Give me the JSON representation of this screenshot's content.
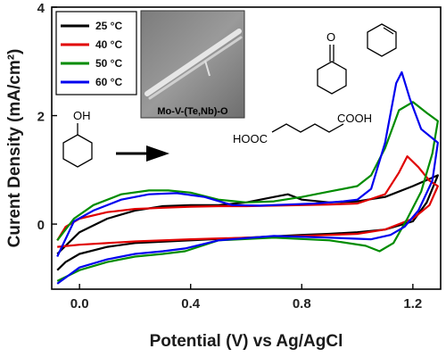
{
  "chart_data": {
    "type": "line",
    "xlabel": "Potential (V) vs Ag/AgCl",
    "ylabel": "Curent Density (mA/cm²)",
    "xlim": [
      -0.1,
      1.3
    ],
    "ylim": [
      -1.2,
      4.0
    ],
    "x_ticks": [
      0.0,
      0.4,
      0.8,
      1.2
    ],
    "x_tick_labels": [
      "0.0",
      "0.4",
      "0.8",
      "1.2"
    ],
    "y_ticks": [
      0,
      2,
      4
    ],
    "y_tick_labels": [
      "0",
      "2",
      "4"
    ],
    "grid": false,
    "legend_placement": "top-left",
    "series": [
      {
        "name": "25 °C",
        "color": "#000000",
        "anodic": [
          [
            -0.08,
            -0.55
          ],
          [
            0.0,
            -0.15
          ],
          [
            0.1,
            0.1
          ],
          [
            0.2,
            0.25
          ],
          [
            0.3,
            0.33
          ],
          [
            0.4,
            0.35
          ],
          [
            0.5,
            0.35
          ],
          [
            0.6,
            0.4
          ],
          [
            0.7,
            0.5
          ],
          [
            0.75,
            0.55
          ],
          [
            0.8,
            0.45
          ],
          [
            0.9,
            0.4
          ],
          [
            1.0,
            0.42
          ],
          [
            1.1,
            0.5
          ],
          [
            1.2,
            0.7
          ],
          [
            1.29,
            0.9
          ]
        ],
        "cathodic": [
          [
            1.29,
            0.9
          ],
          [
            1.25,
            0.4
          ],
          [
            1.2,
            0.05
          ],
          [
            1.1,
            -0.1
          ],
          [
            1.0,
            -0.15
          ],
          [
            0.9,
            -0.18
          ],
          [
            0.8,
            -0.2
          ],
          [
            0.6,
            -0.25
          ],
          [
            0.4,
            -0.3
          ],
          [
            0.2,
            -0.35
          ],
          [
            0.1,
            -0.42
          ],
          [
            0.0,
            -0.55
          ],
          [
            -0.05,
            -0.7
          ],
          [
            -0.08,
            -0.85
          ]
        ]
      },
      {
        "name": "40 °C",
        "color": "#e00000",
        "anodic": [
          [
            -0.08,
            -0.3
          ],
          [
            -0.05,
            -0.05
          ],
          [
            0.0,
            0.1
          ],
          [
            0.1,
            0.22
          ],
          [
            0.2,
            0.28
          ],
          [
            0.3,
            0.3
          ],
          [
            0.4,
            0.32
          ],
          [
            0.5,
            0.33
          ],
          [
            0.6,
            0.33
          ],
          [
            0.7,
            0.34
          ],
          [
            0.8,
            0.35
          ],
          [
            0.9,
            0.36
          ],
          [
            1.0,
            0.38
          ],
          [
            1.1,
            0.55
          ],
          [
            1.15,
            0.95
          ],
          [
            1.18,
            1.25
          ],
          [
            1.22,
            1.05
          ],
          [
            1.26,
            0.8
          ],
          [
            1.29,
            0.7
          ]
        ],
        "cathodic": [
          [
            1.29,
            0.7
          ],
          [
            1.26,
            0.35
          ],
          [
            1.2,
            0.1
          ],
          [
            1.1,
            -0.1
          ],
          [
            1.0,
            -0.18
          ],
          [
            0.8,
            -0.22
          ],
          [
            0.6,
            -0.25
          ],
          [
            0.4,
            -0.28
          ],
          [
            0.2,
            -0.32
          ],
          [
            0.0,
            -0.38
          ],
          [
            -0.08,
            -0.42
          ]
        ]
      },
      {
        "name": "50 °C",
        "color": "#008c00",
        "anodic": [
          [
            -0.08,
            -0.3
          ],
          [
            -0.02,
            0.1
          ],
          [
            0.05,
            0.35
          ],
          [
            0.15,
            0.55
          ],
          [
            0.25,
            0.62
          ],
          [
            0.32,
            0.62
          ],
          [
            0.4,
            0.58
          ],
          [
            0.5,
            0.45
          ],
          [
            0.6,
            0.4
          ],
          [
            0.7,
            0.42
          ],
          [
            0.8,
            0.5
          ],
          [
            0.9,
            0.6
          ],
          [
            1.0,
            0.7
          ],
          [
            1.05,
            0.9
          ],
          [
            1.1,
            1.4
          ],
          [
            1.15,
            2.1
          ],
          [
            1.2,
            2.25
          ],
          [
            1.25,
            2.05
          ],
          [
            1.29,
            1.9
          ]
        ],
        "cathodic": [
          [
            1.29,
            1.9
          ],
          [
            1.27,
            1.3
          ],
          [
            1.23,
            0.6
          ],
          [
            1.18,
            0.1
          ],
          [
            1.13,
            -0.35
          ],
          [
            1.08,
            -0.5
          ],
          [
            1.03,
            -0.4
          ],
          [
            0.9,
            -0.3
          ],
          [
            0.7,
            -0.25
          ],
          [
            0.5,
            -0.3
          ],
          [
            0.38,
            -0.5
          ],
          [
            0.3,
            -0.55
          ],
          [
            0.2,
            -0.6
          ],
          [
            0.1,
            -0.7
          ],
          [
            0.0,
            -0.85
          ],
          [
            -0.08,
            -1.05
          ]
        ]
      },
      {
        "name": "60 °C",
        "color": "#0000ee",
        "anodic": [
          [
            -0.08,
            -0.6
          ],
          [
            -0.02,
            0.05
          ],
          [
            0.05,
            0.25
          ],
          [
            0.15,
            0.45
          ],
          [
            0.25,
            0.55
          ],
          [
            0.35,
            0.57
          ],
          [
            0.45,
            0.5
          ],
          [
            0.55,
            0.35
          ],
          [
            0.65,
            0.34
          ],
          [
            0.75,
            0.36
          ],
          [
            0.85,
            0.38
          ],
          [
            0.95,
            0.42
          ],
          [
            1.0,
            0.45
          ],
          [
            1.05,
            0.65
          ],
          [
            1.1,
            1.5
          ],
          [
            1.14,
            2.6
          ],
          [
            1.16,
            2.8
          ],
          [
            1.19,
            2.3
          ],
          [
            1.23,
            1.75
          ],
          [
            1.29,
            1.5
          ]
        ],
        "cathodic": [
          [
            1.29,
            1.5
          ],
          [
            1.27,
            0.8
          ],
          [
            1.22,
            0.25
          ],
          [
            1.17,
            -0.05
          ],
          [
            1.12,
            -0.2
          ],
          [
            1.05,
            -0.28
          ],
          [
            0.9,
            -0.25
          ],
          [
            0.7,
            -0.22
          ],
          [
            0.5,
            -0.3
          ],
          [
            0.38,
            -0.45
          ],
          [
            0.3,
            -0.5
          ],
          [
            0.2,
            -0.55
          ],
          [
            0.1,
            -0.65
          ],
          [
            0.0,
            -0.8
          ],
          [
            -0.08,
            -1.1
          ]
        ]
      }
    ],
    "inset": {
      "caption": "Mo-V-(Te,Nb)-O"
    },
    "scheme": {
      "cyclohexanol_label": "OH",
      "cyclohexanone_label": "O",
      "acid_left": "HOOC",
      "acid_right": "COOH"
    }
  }
}
